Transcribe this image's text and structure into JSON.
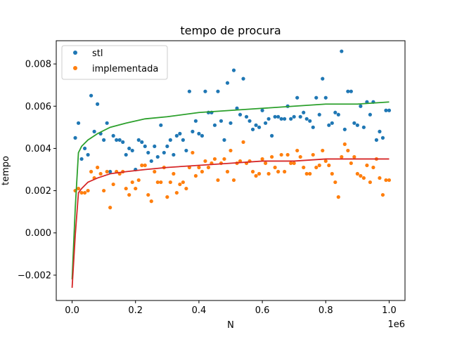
{
  "chart_data": {
    "type": "scatter",
    "title": "tempo de procura",
    "xlabel": "N",
    "ylabel": "tempo",
    "x_offset_label": "1e6",
    "xlim": [
      -0.05,
      1.05
    ],
    "ylim": [
      -0.0032,
      0.0091
    ],
    "x_ticks": [
      0.0,
      0.2,
      0.4,
      0.6,
      0.8,
      1.0
    ],
    "x_tick_labels": [
      "0.0",
      "0.2",
      "0.4",
      "0.6",
      "0.8",
      "1.0"
    ],
    "y_ticks": [
      -0.002,
      0.0,
      0.002,
      0.004,
      0.006,
      0.008
    ],
    "y_tick_labels": [
      "−0.002",
      "0.000",
      "0.002",
      "0.004",
      "0.006",
      "0.008"
    ],
    "legend_position": "top-left",
    "colors": {
      "stl": "#1f77b4",
      "implementada": "#ff7f0e",
      "stl_fit": "#2ca02c",
      "implementada_fit": "#d62728"
    },
    "series": [
      {
        "name": "stl",
        "marker": "point",
        "x": [
          0.01,
          0.02,
          0.03,
          0.04,
          0.05,
          0.06,
          0.07,
          0.08,
          0.09,
          0.1,
          0.11,
          0.12,
          0.13,
          0.14,
          0.15,
          0.16,
          0.17,
          0.18,
          0.19,
          0.2,
          0.21,
          0.22,
          0.23,
          0.24,
          0.25,
          0.26,
          0.27,
          0.28,
          0.29,
          0.3,
          0.31,
          0.32,
          0.33,
          0.34,
          0.35,
          0.36,
          0.37,
          0.38,
          0.39,
          0.4,
          0.41,
          0.42,
          0.43,
          0.44,
          0.45,
          0.46,
          0.47,
          0.48,
          0.49,
          0.5,
          0.51,
          0.52,
          0.53,
          0.54,
          0.55,
          0.56,
          0.57,
          0.58,
          0.59,
          0.6,
          0.61,
          0.62,
          0.63,
          0.64,
          0.65,
          0.66,
          0.67,
          0.68,
          0.69,
          0.7,
          0.71,
          0.72,
          0.73,
          0.74,
          0.75,
          0.76,
          0.77,
          0.78,
          0.79,
          0.8,
          0.81,
          0.82,
          0.83,
          0.84,
          0.85,
          0.86,
          0.87,
          0.88,
          0.89,
          0.9,
          0.91,
          0.92,
          0.93,
          0.94,
          0.95,
          0.96,
          0.97,
          0.98,
          0.99,
          1.0
        ],
        "y": [
          0.0045,
          0.0052,
          0.0035,
          0.004,
          0.0037,
          0.0065,
          0.0048,
          0.0061,
          0.0047,
          0.0044,
          0.0052,
          0.0029,
          0.0046,
          0.0044,
          0.0044,
          0.0043,
          0.0037,
          0.004,
          0.0039,
          0.003,
          0.0044,
          0.0043,
          0.0041,
          0.0038,
          0.0034,
          0.0041,
          0.0036,
          0.0051,
          0.0038,
          0.0041,
          0.0044,
          0.0037,
          0.0046,
          0.0047,
          0.0044,
          0.0039,
          0.0067,
          0.0048,
          0.0053,
          0.0047,
          0.0046,
          0.0067,
          0.0057,
          0.0057,
          0.0051,
          0.0067,
          0.0053,
          0.0044,
          0.0071,
          0.0052,
          0.0077,
          0.0059,
          0.0056,
          0.0073,
          0.0055,
          0.0053,
          0.0049,
          0.0051,
          0.005,
          0.0058,
          0.0052,
          0.0054,
          0.0046,
          0.0055,
          0.0055,
          0.0054,
          0.0054,
          0.006,
          0.0054,
          0.0055,
          0.0064,
          0.0055,
          0.0057,
          0.0054,
          0.0053,
          0.005,
          0.0064,
          0.0056,
          0.0073,
          0.0064,
          0.0051,
          0.0052,
          0.0057,
          0.0056,
          0.0086,
          0.0049,
          0.0067,
          0.0067,
          0.0052,
          0.0051,
          0.006,
          0.005,
          0.0062,
          0.0056,
          0.0062,
          0.0044,
          0.0048,
          0.0045,
          0.0058,
          0.0058
        ]
      },
      {
        "name": "implementada",
        "marker": "point",
        "x": [
          0.01,
          0.02,
          0.03,
          0.04,
          0.05,
          0.06,
          0.07,
          0.08,
          0.09,
          0.1,
          0.11,
          0.12,
          0.13,
          0.14,
          0.15,
          0.16,
          0.17,
          0.18,
          0.19,
          0.2,
          0.21,
          0.22,
          0.23,
          0.24,
          0.25,
          0.26,
          0.27,
          0.28,
          0.29,
          0.3,
          0.31,
          0.32,
          0.33,
          0.34,
          0.35,
          0.36,
          0.37,
          0.38,
          0.39,
          0.4,
          0.41,
          0.42,
          0.43,
          0.44,
          0.45,
          0.46,
          0.47,
          0.48,
          0.49,
          0.5,
          0.51,
          0.52,
          0.53,
          0.54,
          0.55,
          0.56,
          0.57,
          0.58,
          0.59,
          0.6,
          0.61,
          0.62,
          0.63,
          0.64,
          0.65,
          0.66,
          0.67,
          0.68,
          0.69,
          0.7,
          0.71,
          0.72,
          0.73,
          0.74,
          0.75,
          0.76,
          0.77,
          0.78,
          0.79,
          0.8,
          0.81,
          0.82,
          0.83,
          0.84,
          0.85,
          0.86,
          0.87,
          0.88,
          0.89,
          0.9,
          0.91,
          0.92,
          0.93,
          0.94,
          0.95,
          0.96,
          0.97,
          0.98,
          0.99,
          1.0
        ],
        "y": [
          0.002,
          0.0021,
          0.0019,
          0.0019,
          0.002,
          0.0029,
          0.0026,
          0.0031,
          0.0028,
          0.002,
          0.0029,
          0.0012,
          0.0023,
          0.0029,
          0.0028,
          0.0029,
          0.0021,
          0.0018,
          0.0024,
          0.0021,
          0.0025,
          0.0032,
          0.0032,
          0.0018,
          0.0015,
          0.0029,
          0.0024,
          0.0024,
          0.0031,
          0.0017,
          0.0024,
          0.0028,
          0.0019,
          0.0023,
          0.0024,
          0.0021,
          0.0031,
          0.0038,
          0.0027,
          0.0031,
          0.0029,
          0.0034,
          0.0031,
          0.0033,
          0.0035,
          0.0025,
          0.0033,
          0.0035,
          0.0029,
          0.0039,
          0.0025,
          0.0033,
          0.0034,
          0.0043,
          0.0033,
          0.0034,
          0.0029,
          0.0027,
          0.0028,
          0.0035,
          0.0033,
          0.0028,
          0.0036,
          0.0031,
          0.0029,
          0.0037,
          0.0029,
          0.0037,
          0.0033,
          0.0033,
          0.0039,
          0.0036,
          0.0031,
          0.0028,
          0.0028,
          0.0037,
          0.0031,
          0.0032,
          0.0039,
          0.0034,
          0.0032,
          0.0028,
          0.0024,
          0.0017,
          0.0036,
          0.0042,
          0.0039,
          0.0033,
          0.0036,
          0.0028,
          0.0027,
          0.0026,
          0.0032,
          0.0024,
          0.0031,
          0.0035,
          0.0026,
          0.0018,
          0.0025,
          0.0025
        ]
      }
    ],
    "fits": [
      {
        "name": "stl_fit",
        "x": [
          0.0,
          0.01,
          0.02,
          0.03,
          0.05,
          0.08,
          0.12,
          0.17,
          0.23,
          0.3,
          0.4,
          0.5,
          0.6,
          0.7,
          0.8,
          0.9,
          1.0
        ],
        "y": [
          -0.0022,
          0.0012,
          0.0038,
          0.0041,
          0.0044,
          0.0047,
          0.005,
          0.0052,
          0.0054,
          0.0055,
          0.0057,
          0.0058,
          0.0059,
          0.006,
          0.0061,
          0.0061,
          0.0062
        ]
      },
      {
        "name": "implementada_fit",
        "x": [
          0.0,
          0.01,
          0.02,
          0.03,
          0.05,
          0.08,
          0.12,
          0.17,
          0.23,
          0.3,
          0.4,
          0.5,
          0.6,
          0.7,
          0.8,
          0.9,
          1.0
        ],
        "y": [
          -0.0026,
          -0.0001,
          0.0019,
          0.0021,
          0.0024,
          0.0026,
          0.0028,
          0.0029,
          0.003,
          0.0031,
          0.0032,
          0.0033,
          0.0034,
          0.0034,
          0.0035,
          0.0035,
          0.0035
        ]
      }
    ]
  }
}
